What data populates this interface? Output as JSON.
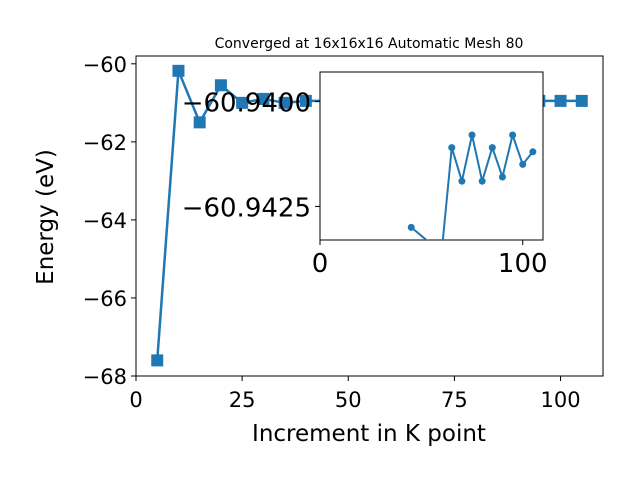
{
  "chart_data": [
    {
      "type": "line",
      "title": "Converged at 16x16x16 Automatic Mesh 80",
      "xlabel": "Increment in K point",
      "ylabel": "Energy (eV)",
      "xlim": [
        0,
        110
      ],
      "ylim": [
        -68,
        -59.8
      ],
      "xticks": [
        "0",
        "25",
        "50",
        "75",
        "100"
      ],
      "yticks": [
        "−68",
        "−66",
        "−64",
        "−62",
        "−60"
      ],
      "marker": "square",
      "color": "#1f77b4",
      "series": [
        {
          "x": [
            5,
            10,
            15,
            20,
            25,
            30,
            35,
            40,
            45,
            50,
            55,
            60,
            65,
            70,
            75,
            80,
            85,
            90,
            95,
            100,
            105
          ],
          "y": [
            -67.6,
            -60.18,
            -61.5,
            -60.55,
            -61.0,
            -60.9,
            -61.0,
            -60.95,
            -60.95,
            -60.95,
            -60.95,
            -60.95,
            -60.95,
            -60.95,
            -60.95,
            -60.95,
            -60.95,
            -60.95,
            -60.95,
            -60.95,
            -60.95
          ]
        }
      ]
    },
    {
      "type": "line",
      "title": "",
      "xlabel": "",
      "ylabel": "",
      "xlim": [
        0,
        110
      ],
      "ylim": [
        -60.9393,
        -60.9433
      ],
      "xticks": [
        "0",
        "100"
      ],
      "yticks": [
        "−60.9425",
        "−60.9400"
      ],
      "marker": "circle",
      "color": "#1f77b4",
      "series": [
        {
          "x": [
            45,
            60,
            65,
            70,
            75,
            80,
            85,
            90,
            95,
            100,
            105
          ],
          "y": [
            -60.943,
            -60.9436,
            -60.9411,
            -60.9419,
            -60.9408,
            -60.9419,
            -60.9411,
            -60.9418,
            -60.9408,
            -60.9415,
            -60.9412
          ]
        }
      ]
    }
  ]
}
